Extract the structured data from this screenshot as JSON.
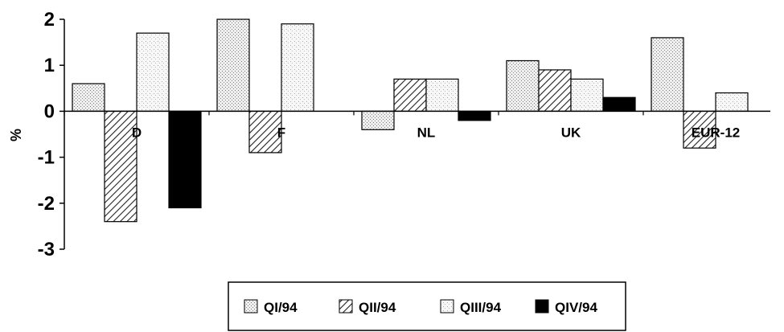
{
  "chart_data": {
    "type": "bar",
    "title": "",
    "xlabel": "",
    "ylabel": "%",
    "ylim": [
      -3,
      2
    ],
    "yticks": [
      "2",
      "1",
      "0",
      "-1",
      "-2",
      "-3"
    ],
    "grid": false,
    "legend_position": "bottom",
    "categories": [
      "D",
      "F",
      "NL",
      "UK",
      "EUR-12"
    ],
    "series": [
      {
        "name": "QI/94",
        "values": [
          0.6,
          2.0,
          -0.4,
          1.1,
          1.6
        ]
      },
      {
        "name": "QII/94",
        "values": [
          -2.4,
          -0.9,
          0.7,
          0.9,
          -0.8
        ]
      },
      {
        "name": "QIII/94",
        "values": [
          1.7,
          1.9,
          0.7,
          0.7,
          0.4
        ]
      },
      {
        "name": "QIV/94",
        "values": [
          -2.1,
          0.0,
          -0.2,
          0.3,
          0.0
        ]
      }
    ]
  }
}
